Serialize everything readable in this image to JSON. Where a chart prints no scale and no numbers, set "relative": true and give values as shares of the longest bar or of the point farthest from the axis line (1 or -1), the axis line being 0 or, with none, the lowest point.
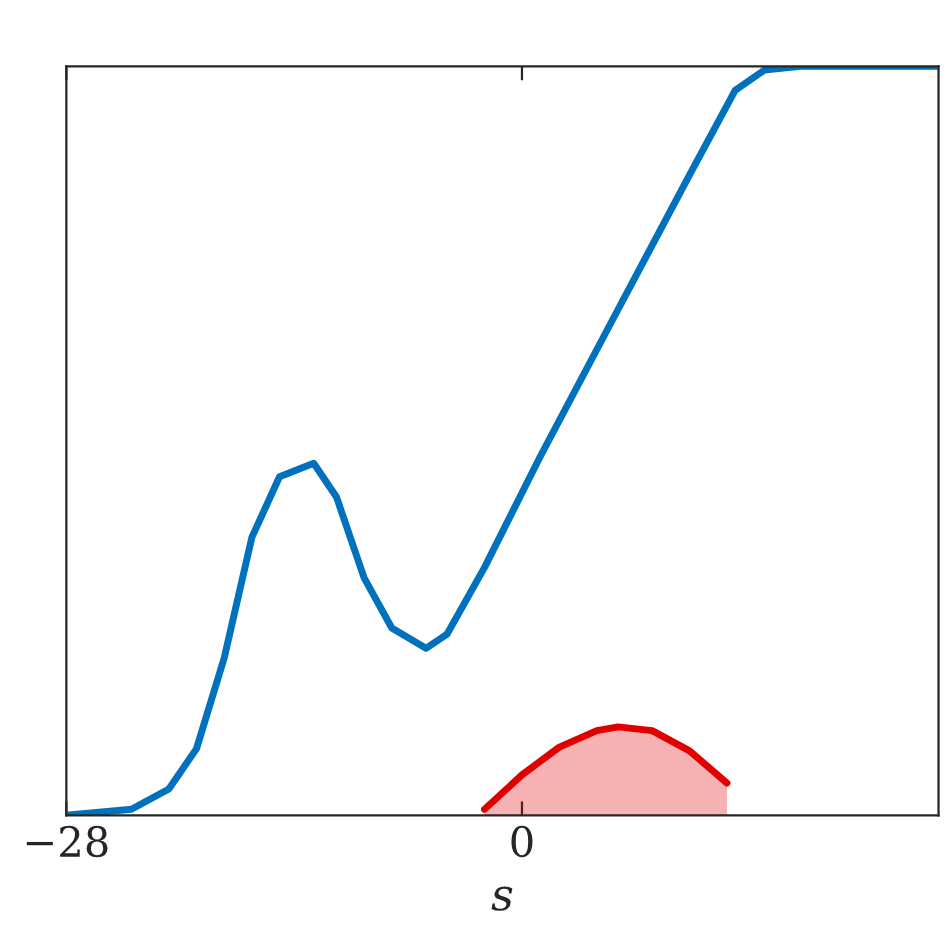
{
  "chart_data": {
    "type": "line",
    "xlabel": "s",
    "relative": true,
    "xlim": [
      -28,
      25.6
    ],
    "xticks": [
      {
        "value": -28,
        "label": "−28"
      },
      0
    ],
    "series": [
      {
        "color": "#0072bd",
        "x": [
          -28.0,
          -24.0,
          -21.7,
          -20.0,
          -18.3,
          -16.6,
          -14.9,
          -12.8,
          -11.4,
          -9.7,
          -8.0,
          -5.9,
          -4.6,
          -2.3,
          1.1,
          5.7,
          10.3,
          13.1,
          14.9,
          17.1,
          25.6
        ],
        "values": [
          0,
          0.008,
          0.035,
          0.089,
          0.21,
          0.371,
          0.452,
          0.47,
          0.425,
          0.317,
          0.25,
          0.223,
          0.242,
          0.331,
          0.478,
          0.667,
          0.855,
          0.968,
          0.995,
          1,
          1
        ]
      },
      {
        "type": "area",
        "color": "#e00000",
        "x": [
          -2.3,
          0,
          2.3,
          4.6,
          5.9,
          8.0,
          10.3,
          12.6
        ],
        "values": [
          0.008,
          0.054,
          0.091,
          0.113,
          0.118,
          0.113,
          0.086,
          0.043
        ]
      }
    ],
    "grid": false,
    "legend": false
  }
}
